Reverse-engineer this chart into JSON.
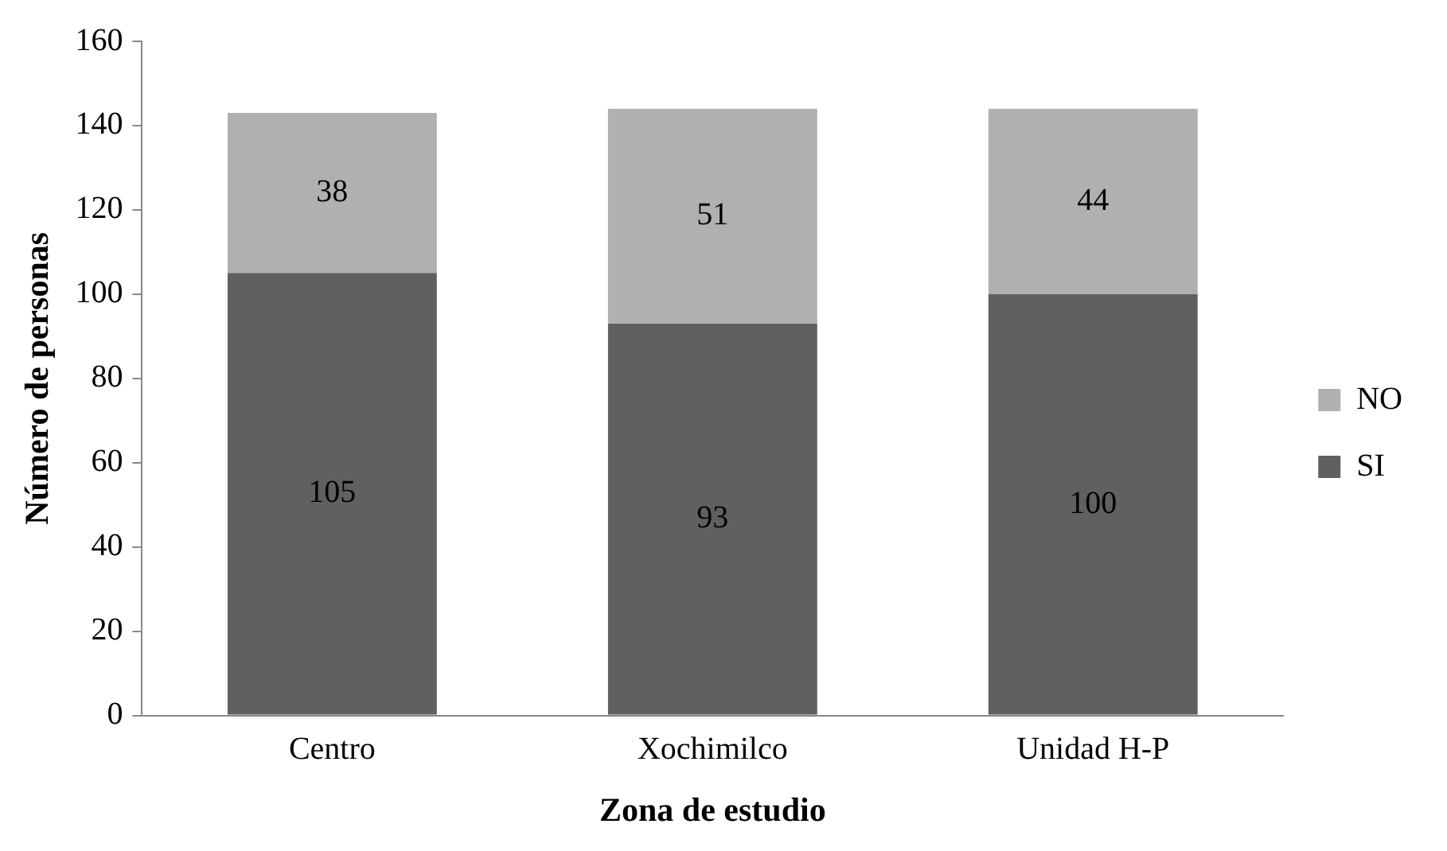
{
  "chart_data": {
    "type": "bar",
    "xlabel": "Zona de estudio",
    "ylabel": "Número de personas",
    "categories": [
      "Centro",
      "Xochimilco",
      "Unidad H-P"
    ],
    "series": [
      {
        "name": "SI",
        "color": "#606060",
        "values": [
          105,
          93,
          100
        ]
      },
      {
        "name": "NO",
        "color": "#b0b0b0",
        "values": [
          38,
          51,
          44
        ]
      }
    ],
    "stacked": true,
    "ylim": [
      0,
      160
    ],
    "yticks": [
      0,
      20,
      40,
      60,
      80,
      100,
      120,
      140,
      160
    ],
    "grid": false,
    "legend": "right",
    "data_labels": true
  }
}
